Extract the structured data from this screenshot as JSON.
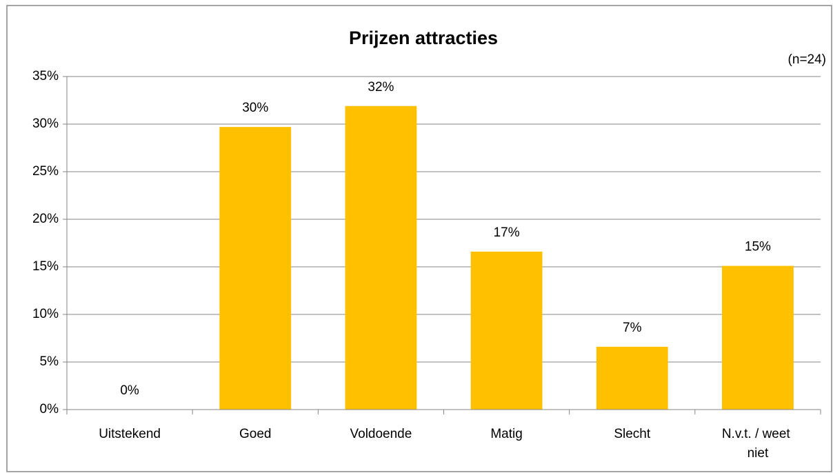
{
  "chart_data": {
    "type": "bar",
    "title": "Prijzen attracties",
    "annotation": "(n=24)",
    "categories": [
      "Uitstekend",
      "Goed",
      "Voldoende",
      "Matig",
      "Slecht",
      "N.v.t. / weet niet"
    ],
    "values": [
      0,
      29.7,
      31.9,
      16.6,
      6.6,
      15.1
    ],
    "value_labels": [
      "0%",
      "30%",
      "32%",
      "17%",
      "7%",
      "15%"
    ],
    "color": "#ffc000",
    "ylim": [
      0,
      35
    ],
    "yticks": [
      {
        "value": 0,
        "label": "0%"
      },
      {
        "value": 5,
        "label": "5%"
      },
      {
        "value": 10,
        "label": "10%"
      },
      {
        "value": 15,
        "label": "15%"
      },
      {
        "value": 20,
        "label": "20%"
      },
      {
        "value": 25,
        "label": "25%"
      },
      {
        "value": 30,
        "label": "30%"
      },
      {
        "value": 35,
        "label": "35%"
      }
    ],
    "grid": true
  }
}
